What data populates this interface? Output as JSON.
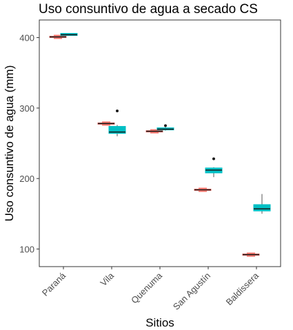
{
  "chart_data": {
    "type": "boxplot",
    "title": "Uso consuntivo de agua a secado CS",
    "xlabel": "Sitios",
    "ylabel": "Uso consuntivo de agua (mm)",
    "categories": [
      "Paraná",
      "Vila",
      "Quenuma",
      "San Agustín",
      "Baldissera"
    ],
    "ylim": [
      75,
      425
    ],
    "yticks": [
      100,
      200,
      300,
      400
    ],
    "grid": false,
    "legend": "none",
    "series": [
      {
        "color": "#F8766D",
        "boxes": [
          {
            "category": "Paraná",
            "min": 400,
            "q1": 400,
            "median": 401,
            "q3": 402,
            "max": 402,
            "outliers": []
          },
          {
            "category": "Vila",
            "min": 277,
            "q1": 277,
            "median": 278,
            "q3": 279,
            "max": 279,
            "outliers": []
          },
          {
            "category": "Quenuma",
            "min": 266,
            "q1": 266,
            "median": 267,
            "q3": 268,
            "max": 268,
            "outliers": []
          },
          {
            "category": "San Agustín",
            "min": 183,
            "q1": 183,
            "median": 184,
            "q3": 185,
            "max": 185,
            "outliers": []
          },
          {
            "category": "Baldissera",
            "min": 91,
            "q1": 91,
            "median": 92,
            "q3": 93,
            "max": 93,
            "outliers": []
          }
        ]
      },
      {
        "color": "#00BFC4",
        "boxes": [
          {
            "category": "Paraná",
            "min": 403,
            "q1": 403,
            "median": 404,
            "q3": 406,
            "max": 406,
            "outliers": []
          },
          {
            "category": "Vila",
            "min": 260,
            "q1": 264,
            "median": 266,
            "q3": 274,
            "max": 276,
            "outliers": [
              296
            ]
          },
          {
            "category": "Quenuma",
            "min": 268,
            "q1": 269,
            "median": 270,
            "q3": 272,
            "max": 273,
            "outliers": [
              275
            ]
          },
          {
            "category": "San Agustín",
            "min": 202,
            "q1": 208,
            "median": 212,
            "q3": 215,
            "max": 216,
            "outliers": [
              228
            ]
          },
          {
            "category": "Baldissera",
            "min": 150,
            "q1": 154,
            "median": 157,
            "q3": 163,
            "max": 178,
            "outliers": []
          }
        ]
      }
    ]
  }
}
